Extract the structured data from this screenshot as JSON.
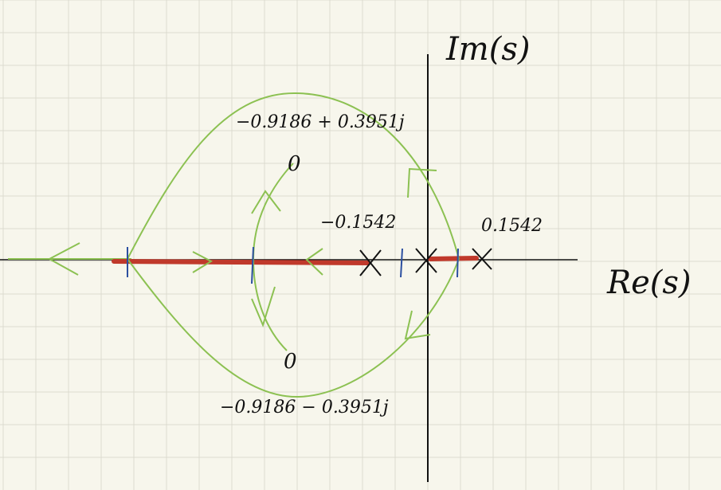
{
  "axes": {
    "imag_label": "Im(s)",
    "real_label": "Re(s)"
  },
  "labels": {
    "upper_zero": "−0.9186 + 0.3951j",
    "lower_zero": "−0.9186 − 0.3951j",
    "left_pole": "−0.1542",
    "right_pole": "0.1542"
  },
  "markers": {
    "zero_symbol": "0",
    "pole_symbol": "×"
  },
  "colors": {
    "grid": "#dcdcd0",
    "axis": "#111111",
    "locus": "#8cc152",
    "real_axis_locus": "#c0392b",
    "breakpoint": "#2b4fa0",
    "paper": "#f7f6ec"
  }
}
